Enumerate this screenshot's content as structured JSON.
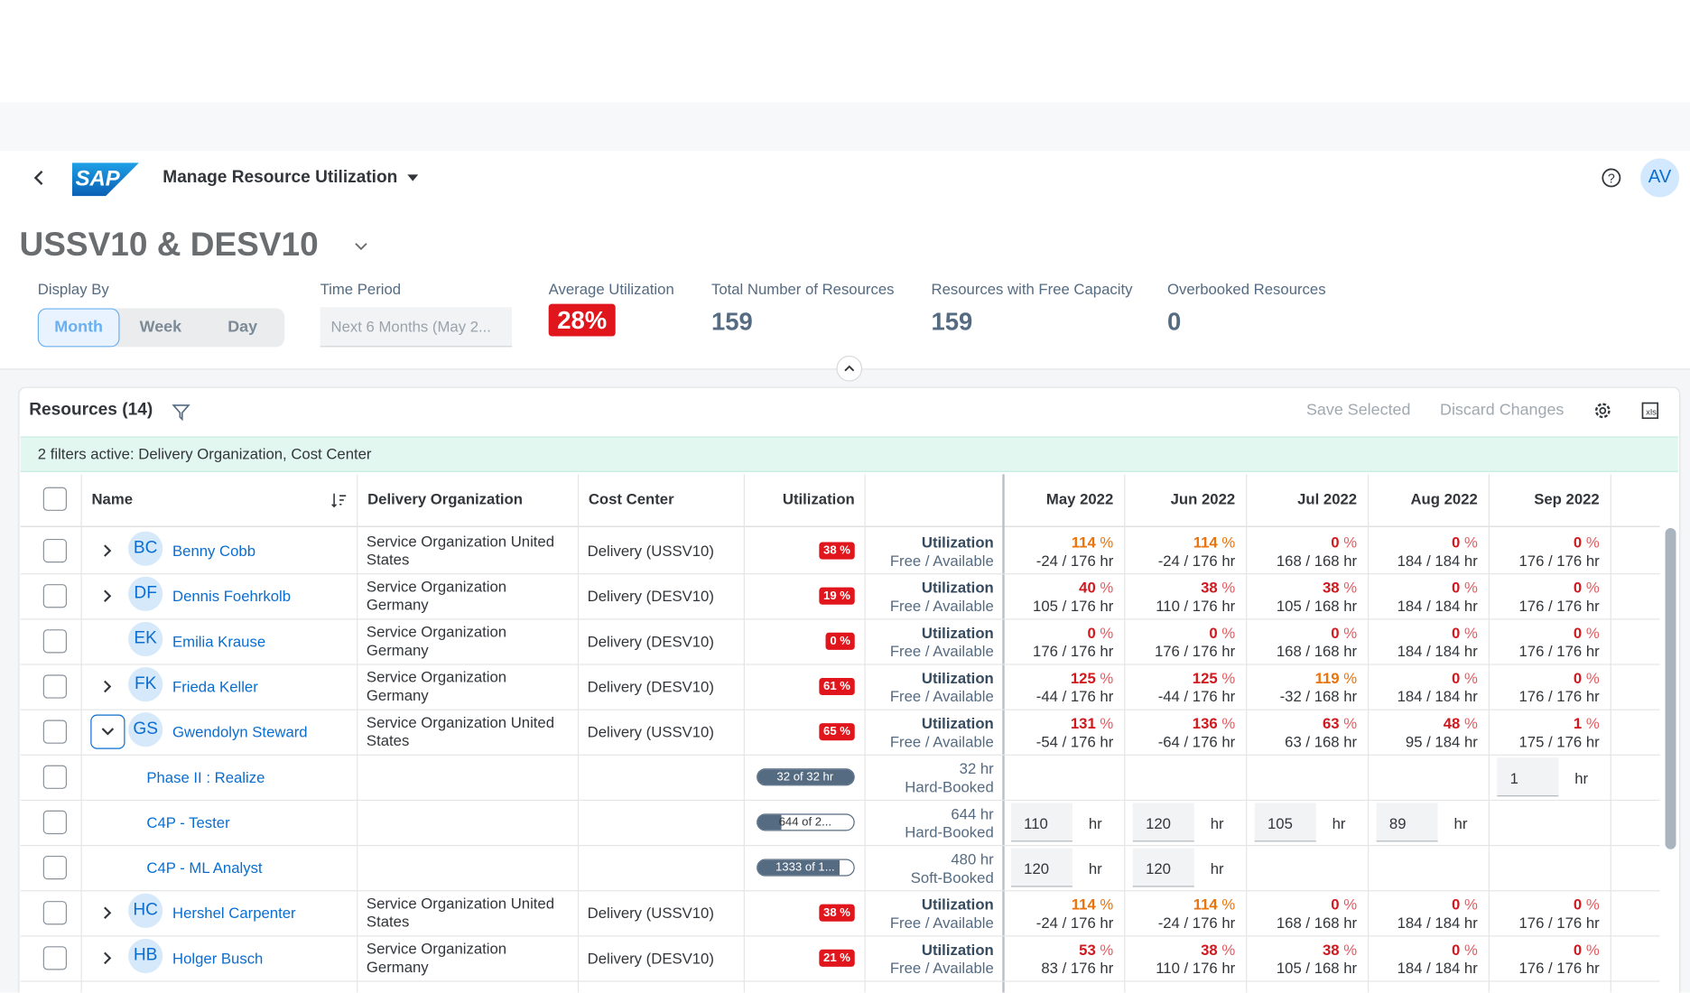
{
  "header": {
    "logo": "SAP",
    "app_title": "Manage Resource Utilization",
    "avatar": "AV"
  },
  "page_title": "USSV10 & DESV10",
  "display_by": {
    "label": "Display By",
    "options": [
      "Month",
      "Week",
      "Day"
    ],
    "selected": 0
  },
  "time_period": {
    "label": "Time Period",
    "placeholder": "Next 6 Months (May 2..."
  },
  "kpis": [
    {
      "label": "Average Utilization",
      "value": "28%",
      "highlight": true
    },
    {
      "label": "Total Number of Resources",
      "value": "159"
    },
    {
      "label": "Resources with Free Capacity",
      "value": "159"
    },
    {
      "label": "Overbooked Resources",
      "value": "0"
    }
  ],
  "table": {
    "title": "Resources (14)",
    "actions": [
      "Save Selected",
      "Discard Changes"
    ],
    "filter_info": "2 filters active: Delivery Organization, Cost Center",
    "columns": {
      "name": "Name",
      "delivery_org": "Delivery Organization",
      "cost_center": "Cost Center",
      "utilization": "Utilization",
      "months": [
        "May 2022",
        "Jun 2022",
        "Jul 2022",
        "Aug 2022",
        "Sep 2022"
      ]
    },
    "row_labels": [
      "Utilization",
      "Free / Available"
    ],
    "percent_sign": "%",
    "hour_unit": "hr",
    "rows": [
      {
        "type": "resource",
        "initials": "BC",
        "name": "Benny Cobb",
        "delivery_org": "Service Organization United States",
        "cost_center": "Delivery (USSV10)",
        "utilization": "38 %",
        "expandable": true,
        "expanded": false,
        "months": [
          {
            "pct": "114",
            "hours": "-24 / 176 hr",
            "color": "#e9730c"
          },
          {
            "pct": "114",
            "hours": "-24 / 176 hr",
            "color": "#e9730c"
          },
          {
            "pct": "0",
            "hours": "168 / 168 hr"
          },
          {
            "pct": "0",
            "hours": "184 / 184 hr"
          },
          {
            "pct": "0",
            "hours": "176 / 176 hr"
          }
        ]
      },
      {
        "type": "resource",
        "initials": "DF",
        "name": "Dennis Foehrkolb",
        "delivery_org": "Service Organization Germany",
        "cost_center": "Delivery (DESV10)",
        "utilization": "19 %",
        "expandable": true,
        "expanded": false,
        "months": [
          {
            "pct": "40",
            "hours": "105 / 176 hr"
          },
          {
            "pct": "38",
            "hours": "110 / 176 hr"
          },
          {
            "pct": "38",
            "hours": "105 / 168 hr"
          },
          {
            "pct": "0",
            "hours": "184 / 184 hr"
          },
          {
            "pct": "0",
            "hours": "176 / 176 hr"
          }
        ]
      },
      {
        "type": "resource",
        "initials": "EK",
        "name": "Emilia Krause",
        "delivery_org": "Service Organization Germany",
        "cost_center": "Delivery (DESV10)",
        "utilization": "0 %",
        "expandable": false,
        "expanded": false,
        "months": [
          {
            "pct": "0",
            "hours": "176 / 176 hr"
          },
          {
            "pct": "0",
            "hours": "176 / 176 hr"
          },
          {
            "pct": "0",
            "hours": "168 / 168 hr"
          },
          {
            "pct": "0",
            "hours": "184 / 184 hr"
          },
          {
            "pct": "0",
            "hours": "176 / 176 hr"
          }
        ]
      },
      {
        "type": "resource",
        "initials": "FK",
        "name": "Frieda Keller",
        "delivery_org": "Service Organization Germany",
        "cost_center": "Delivery (DESV10)",
        "utilization": "61 %",
        "expandable": true,
        "expanded": false,
        "months": [
          {
            "pct": "125",
            "hours": "-44 / 176 hr"
          },
          {
            "pct": "125",
            "hours": "-44 / 176 hr"
          },
          {
            "pct": "119",
            "hours": "-32 / 168 hr",
            "color": "#e9730c"
          },
          {
            "pct": "0",
            "hours": "184 / 184 hr"
          },
          {
            "pct": "0",
            "hours": "176 / 176 hr"
          }
        ]
      },
      {
        "type": "resource",
        "initials": "GS",
        "name": "Gwendolyn Steward",
        "delivery_org": "Service Organization United States",
        "cost_center": "Delivery (USSV10)",
        "utilization": "65 %",
        "expandable": true,
        "expanded": true,
        "months": [
          {
            "pct": "131",
            "hours": "-54 / 176 hr"
          },
          {
            "pct": "136",
            "hours": "-64 / 176 hr"
          },
          {
            "pct": "63",
            "hours": "63 / 168 hr"
          },
          {
            "pct": "48",
            "hours": "95 / 184 hr"
          },
          {
            "pct": "1",
            "hours": "175 / 176 hr"
          }
        ]
      },
      {
        "type": "assignment",
        "name": "Phase II : Realize",
        "progress_label": "32 of 32 hr",
        "progress": 100,
        "hours": "32 hr",
        "booking": "Hard-Booked",
        "inputs": [
          null,
          null,
          null,
          null,
          "1"
        ]
      },
      {
        "type": "assignment",
        "name": "C4P - Tester",
        "progress_label": "644 of 2...",
        "progress": 25,
        "hours": "644 hr",
        "booking": "Hard-Booked",
        "inputs": [
          "110",
          "120",
          "105",
          "89",
          null
        ]
      },
      {
        "type": "assignment",
        "name": "C4P - ML Analyst",
        "progress_label": "1333 of 1...",
        "progress": 85,
        "hours": "480 hr",
        "booking": "Soft-Booked",
        "inputs": [
          "120",
          "120",
          null,
          null,
          null
        ]
      },
      {
        "type": "resource",
        "initials": "HC",
        "name": "Hershel Carpenter",
        "delivery_org": "Service Organization United States",
        "cost_center": "Delivery (USSV10)",
        "utilization": "38 %",
        "expandable": true,
        "expanded": false,
        "months": [
          {
            "pct": "114",
            "hours": "-24 / 176 hr",
            "color": "#e9730c"
          },
          {
            "pct": "114",
            "hours": "-24 / 176 hr",
            "color": "#e9730c"
          },
          {
            "pct": "0",
            "hours": "168 / 168 hr"
          },
          {
            "pct": "0",
            "hours": "184 / 184 hr"
          },
          {
            "pct": "0",
            "hours": "176 / 176 hr"
          }
        ]
      },
      {
        "type": "resource",
        "initials": "HB",
        "name": "Holger Busch",
        "delivery_org": "Service Organization Germany",
        "cost_center": "Delivery (DESV10)",
        "utilization": "21 %",
        "expandable": true,
        "expanded": false,
        "months": [
          {
            "pct": "53",
            "hours": "83 / 176 hr"
          },
          {
            "pct": "38",
            "hours": "110 / 176 hr"
          },
          {
            "pct": "38",
            "hours": "105 / 168 hr"
          },
          {
            "pct": "0",
            "hours": "184 / 184 hr"
          },
          {
            "pct": "0",
            "hours": "176 / 176 hr"
          }
        ]
      }
    ]
  }
}
